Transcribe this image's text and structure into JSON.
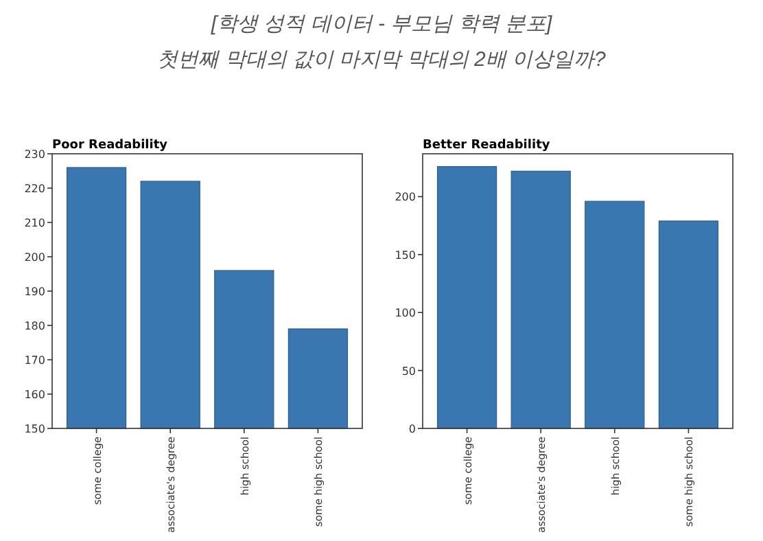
{
  "chart_data": [
    {
      "type": "bar",
      "title": "Poor Readability",
      "annotations": [
        "[학생 성적 데이터 - 부모님 학력  분포]",
        "첫번째 막대의 값이 마지막 막대의 2배 이상일까?"
      ],
      "categories": [
        "some college",
        "associate's degree",
        "high school",
        "some high school"
      ],
      "values": [
        226,
        222,
        196,
        179
      ],
      "color": "#3a76af",
      "ylim": [
        150,
        230
      ],
      "yticks": [
        150,
        160,
        170,
        180,
        190,
        200,
        210,
        220,
        230
      ],
      "grid": false
    },
    {
      "type": "bar",
      "title": "Better Readability",
      "categories": [
        "some college",
        "associate's degree",
        "high school",
        "some high school"
      ],
      "values": [
        226,
        222,
        196,
        179
      ],
      "color": "#3a76af",
      "ylim": [
        0,
        237
      ],
      "yticks": [
        0,
        50,
        100,
        150,
        200
      ],
      "grid": false
    }
  ]
}
